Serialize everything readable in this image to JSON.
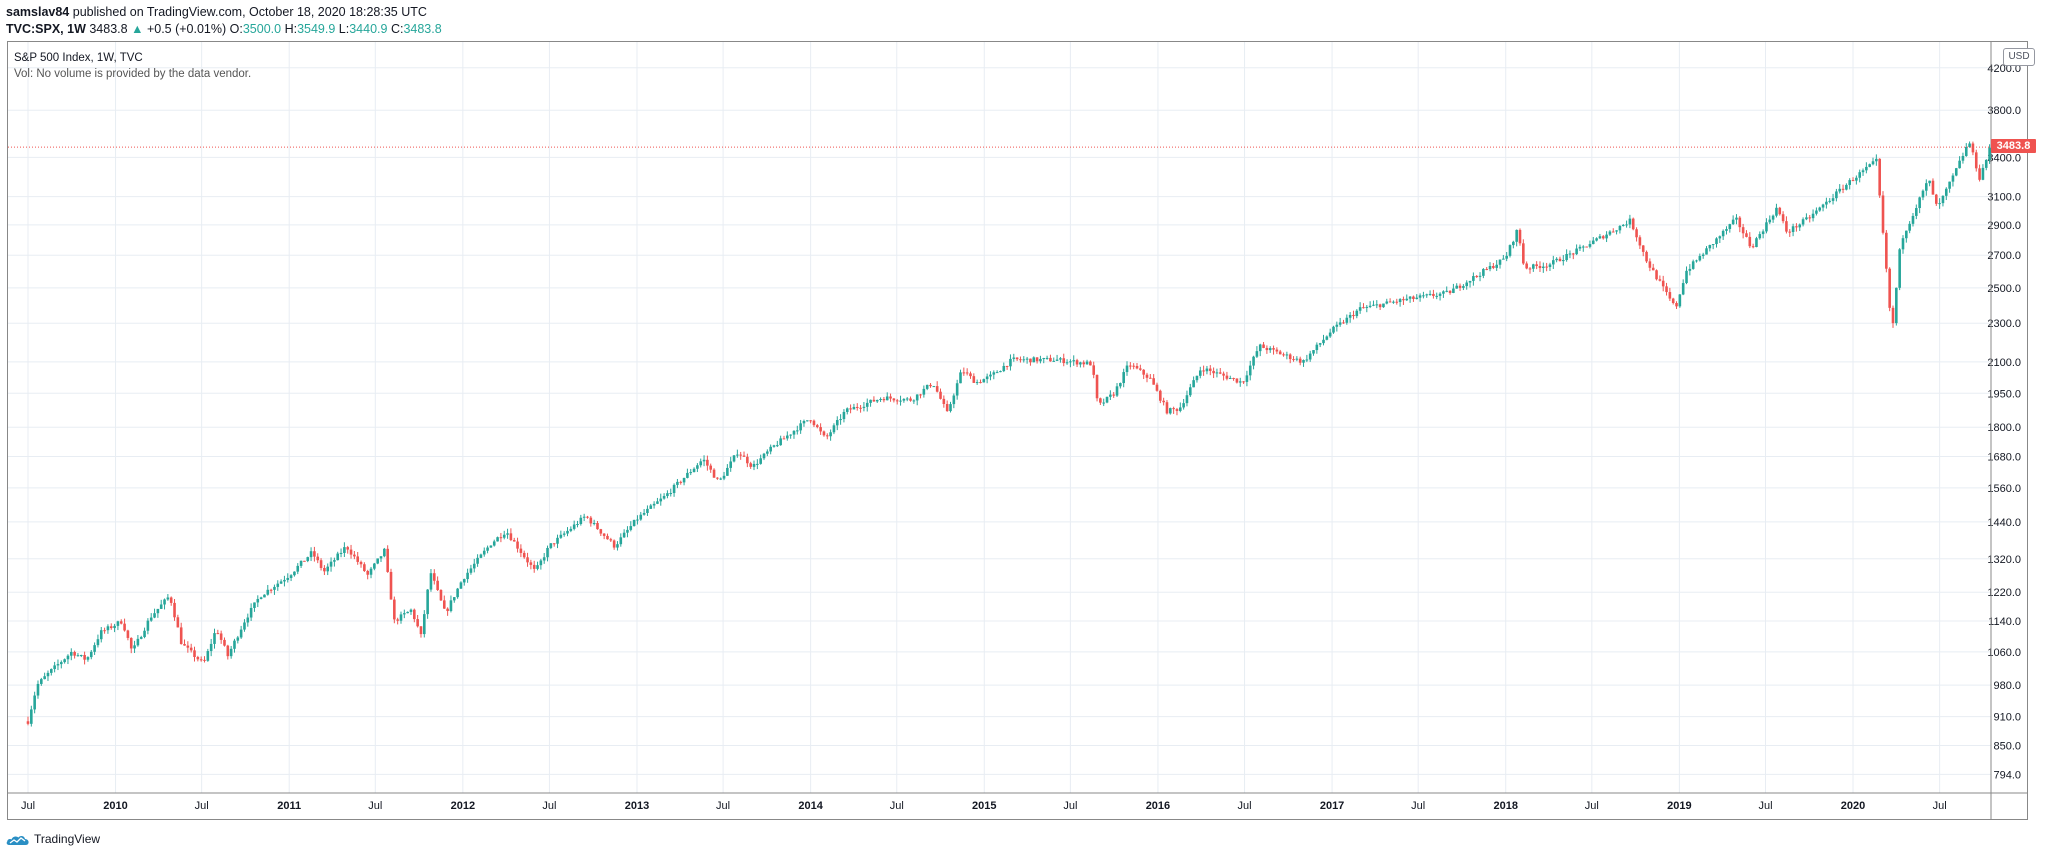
{
  "header": {
    "publisher": "samslav84",
    "published_text": "published on TradingView.com, October 18, 2020 18:28:35 UTC",
    "symbol": "TVC:SPX, 1W",
    "last_price": "3483.8",
    "change_arrow": "▲",
    "change": "+0.5 (+0.01%)",
    "open_label": "O:",
    "open": "3500.0",
    "high_label": "H:",
    "high": "3549.9",
    "low_label": "L:",
    "low": "3440.9",
    "close_label": "C:",
    "close": "3483.8"
  },
  "legend": {
    "title": "S&P 500 Index, 1W, TVC",
    "volume_note": "Vol: No volume is provided by the data vendor."
  },
  "price_axis": {
    "currency": "USD",
    "current_price_tag": "3483.8"
  },
  "footer": {
    "brand": "TradingView",
    "logo_icon": "tradingview-logo-icon"
  },
  "colors": {
    "up": "#26a69a",
    "down": "#ef5350",
    "grid": "#e8edf3",
    "price_line": "#ef5350"
  },
  "chart_data": {
    "type": "candlestick",
    "title": "S&P 500 Index, 1W, TVC",
    "interval": "1W",
    "scale": "log",
    "ylim": [
      760,
      4100
    ],
    "xlim": [
      "2009-07-01",
      "2020-10-31"
    ],
    "y_ticks": [
      "794.0",
      "850.0",
      "910.0",
      "980.0",
      "1060.0",
      "1140.0",
      "1220.0",
      "1320.0",
      "1440.0",
      "1560.0",
      "1680.0",
      "1800.0",
      "1950.0",
      "2100.0",
      "2300.0",
      "2500.0",
      "2700.0",
      "2900.0",
      "3100.0",
      "3400.0",
      "3800.0",
      "4200.0"
    ],
    "x_ticks": [
      {
        "label": "Jul",
        "date": "2009-07-01",
        "major": false
      },
      {
        "label": "2010",
        "date": "2010-01-01",
        "major": true
      },
      {
        "label": "Jul",
        "date": "2010-07-01",
        "major": false
      },
      {
        "label": "2011",
        "date": "2011-01-01",
        "major": true
      },
      {
        "label": "Jul",
        "date": "2011-07-01",
        "major": false
      },
      {
        "label": "2012",
        "date": "2012-01-01",
        "major": true
      },
      {
        "label": "Jul",
        "date": "2012-07-01",
        "major": false
      },
      {
        "label": "2013",
        "date": "2013-01-01",
        "major": true
      },
      {
        "label": "Jul",
        "date": "2013-07-01",
        "major": false
      },
      {
        "label": "2014",
        "date": "2014-01-01",
        "major": true
      },
      {
        "label": "Jul",
        "date": "2014-07-01",
        "major": false
      },
      {
        "label": "2015",
        "date": "2015-01-01",
        "major": true
      },
      {
        "label": "Jul",
        "date": "2015-07-01",
        "major": false
      },
      {
        "label": "2016",
        "date": "2016-01-01",
        "major": true
      },
      {
        "label": "Jul",
        "date": "2016-07-01",
        "major": false
      },
      {
        "label": "2017",
        "date": "2017-01-01",
        "major": true
      },
      {
        "label": "Jul",
        "date": "2017-07-01",
        "major": false
      },
      {
        "label": "2018",
        "date": "2018-01-01",
        "major": true
      },
      {
        "label": "Jul",
        "date": "2018-07-01",
        "major": false
      },
      {
        "label": "2019",
        "date": "2019-01-01",
        "major": true
      },
      {
        "label": "Jul",
        "date": "2019-07-01",
        "major": false
      },
      {
        "label": "2020",
        "date": "2020-01-01",
        "major": true
      },
      {
        "label": "Jul",
        "date": "2020-07-01",
        "major": false
      }
    ],
    "last_close": 3483.8,
    "close_series": [
      [
        "2009-07-01",
        900
      ],
      [
        "2009-07-20",
        980
      ],
      [
        "2009-08-15",
        1010
      ],
      [
        "2009-10-01",
        1060
      ],
      [
        "2009-11-01",
        1040
      ],
      [
        "2009-12-01",
        1110
      ],
      [
        "2010-01-15",
        1140
      ],
      [
        "2010-02-05",
        1060
      ],
      [
        "2010-03-15",
        1150
      ],
      [
        "2010-04-25",
        1210
      ],
      [
        "2010-05-20",
        1080
      ],
      [
        "2010-07-05",
        1030
      ],
      [
        "2010-08-01",
        1120
      ],
      [
        "2010-08-25",
        1050
      ],
      [
        "2010-10-01",
        1145
      ],
      [
        "2010-11-01",
        1210
      ],
      [
        "2011-01-01",
        1270
      ],
      [
        "2011-02-18",
        1340
      ],
      [
        "2011-03-15",
        1280
      ],
      [
        "2011-05-01",
        1360
      ],
      [
        "2011-06-15",
        1270
      ],
      [
        "2011-07-20",
        1345
      ],
      [
        "2011-08-10",
        1140
      ],
      [
        "2011-09-15",
        1170
      ],
      [
        "2011-10-05",
        1100
      ],
      [
        "2011-10-25",
        1280
      ],
      [
        "2011-11-25",
        1160
      ],
      [
        "2012-01-01",
        1260
      ],
      [
        "2012-03-01",
        1370
      ],
      [
        "2012-04-01",
        1410
      ],
      [
        "2012-06-01",
        1280
      ],
      [
        "2012-07-01",
        1360
      ],
      [
        "2012-09-15",
        1460
      ],
      [
        "2012-11-15",
        1360
      ],
      [
        "2013-01-01",
        1450
      ],
      [
        "2013-03-01",
        1530
      ],
      [
        "2013-05-20",
        1670
      ],
      [
        "2013-06-22",
        1580
      ],
      [
        "2013-08-01",
        1700
      ],
      [
        "2013-09-01",
        1640
      ],
      [
        "2013-10-15",
        1720
      ],
      [
        "2013-12-31",
        1840
      ],
      [
        "2014-02-01",
        1750
      ],
      [
        "2014-03-15",
        1870
      ],
      [
        "2014-06-01",
        1930
      ],
      [
        "2014-08-01",
        1920
      ],
      [
        "2014-09-15",
        2000
      ],
      [
        "2014-10-15",
        1860
      ],
      [
        "2014-11-15",
        2060
      ],
      [
        "2014-12-15",
        2000
      ],
      [
        "2015-01-15",
        2030
      ],
      [
        "2015-03-01",
        2110
      ],
      [
        "2015-06-01",
        2110
      ],
      [
        "2015-08-15",
        2090
      ],
      [
        "2015-08-28",
        1890
      ],
      [
        "2015-10-01",
        1950
      ],
      [
        "2015-11-01",
        2090
      ],
      [
        "2015-12-15",
        2020
      ],
      [
        "2016-01-20",
        1870
      ],
      [
        "2016-02-15",
        1880
      ],
      [
        "2016-04-01",
        2070
      ],
      [
        "2016-06-27",
        2000
      ],
      [
        "2016-08-01",
        2180
      ],
      [
        "2016-11-01",
        2100
      ],
      [
        "2016-12-31",
        2260
      ],
      [
        "2017-03-01",
        2380
      ],
      [
        "2017-06-01",
        2430
      ],
      [
        "2017-09-01",
        2470
      ],
      [
        "2017-12-31",
        2680
      ],
      [
        "2018-01-26",
        2870
      ],
      [
        "2018-02-09",
        2620
      ],
      [
        "2018-04-01",
        2640
      ],
      [
        "2018-06-01",
        2730
      ],
      [
        "2018-09-20",
        2930
      ],
      [
        "2018-10-25",
        2660
      ],
      [
        "2018-12-24",
        2380
      ],
      [
        "2019-01-15",
        2600
      ],
      [
        "2019-04-30",
        2940
      ],
      [
        "2019-06-01",
        2750
      ],
      [
        "2019-07-25",
        3020
      ],
      [
        "2019-08-15",
        2850
      ],
      [
        "2019-10-01",
        2950
      ],
      [
        "2019-12-31",
        3230
      ],
      [
        "2020-02-19",
        3370
      ],
      [
        "2020-03-01",
        2950
      ],
      [
        "2020-03-23",
        2240
      ],
      [
        "2020-04-10",
        2790
      ],
      [
        "2020-06-08",
        3230
      ],
      [
        "2020-06-26",
        3010
      ],
      [
        "2020-08-01",
        3270
      ],
      [
        "2020-09-01",
        3530
      ],
      [
        "2020-09-23",
        3240
      ],
      [
        "2020-10-16",
        3483.8
      ]
    ]
  }
}
